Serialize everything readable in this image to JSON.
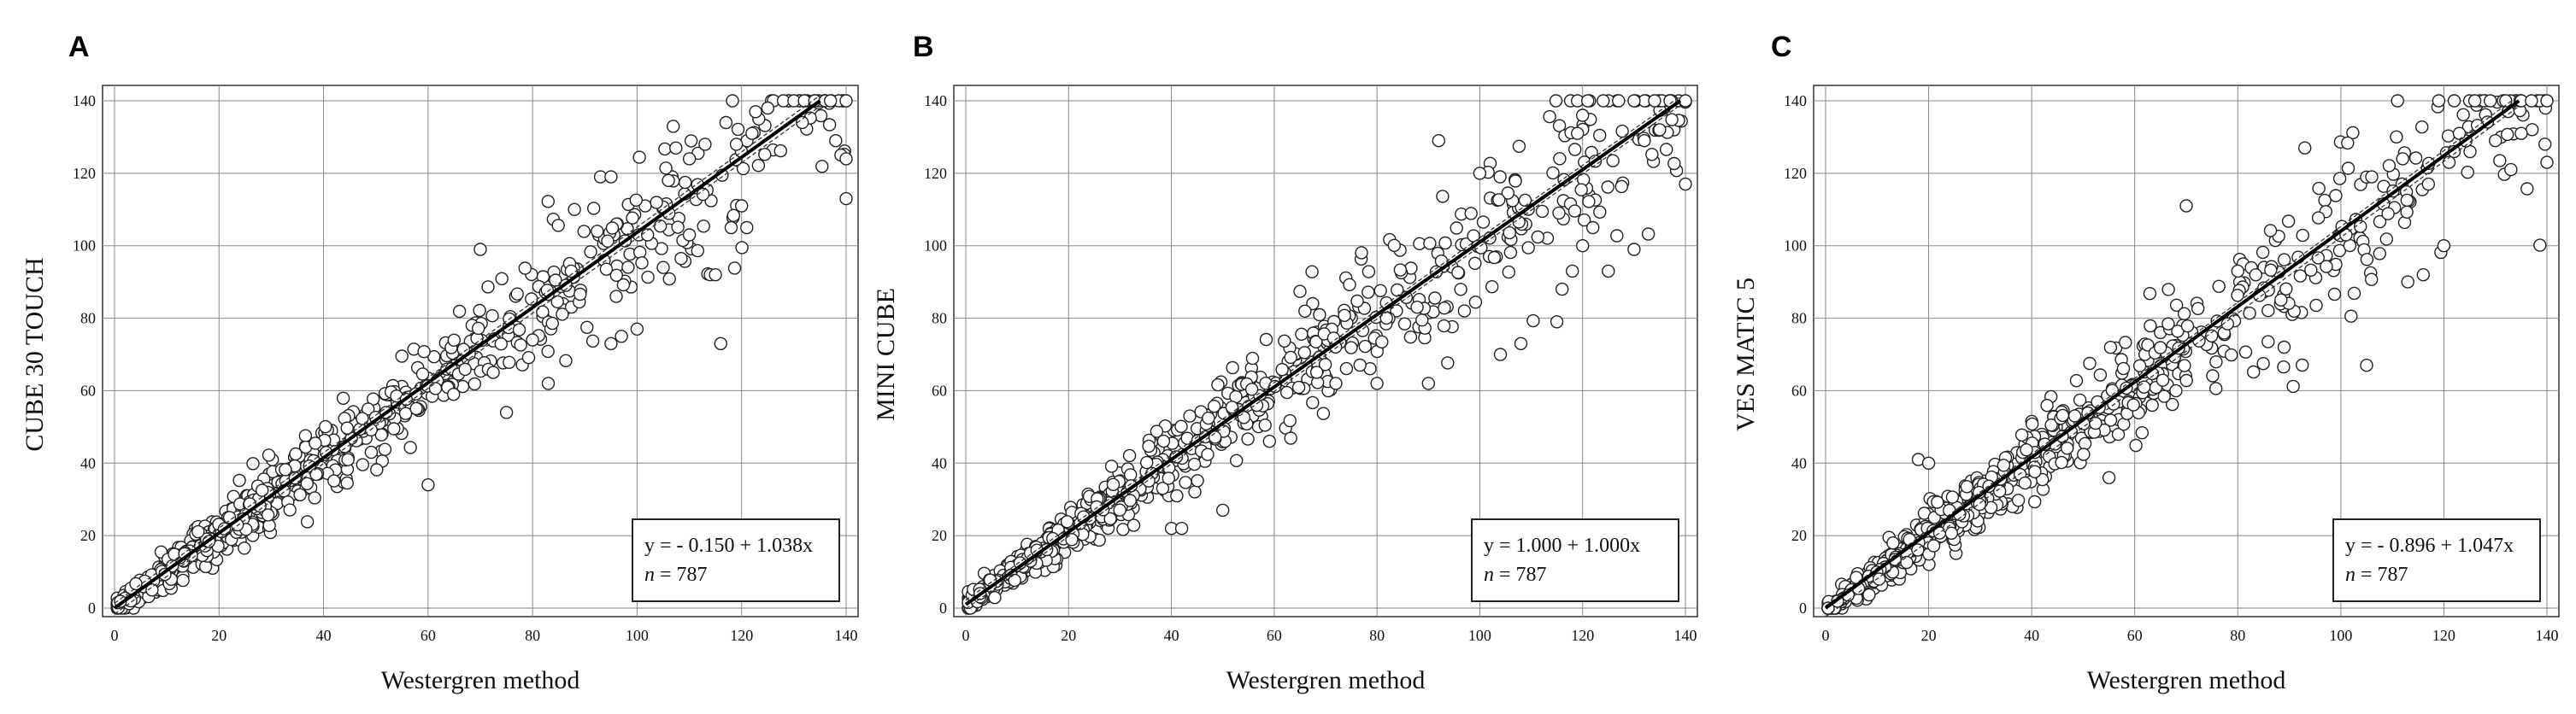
{
  "chart_data": [
    {
      "type": "scatter",
      "panel": "A",
      "xlabel": "Westergren method",
      "ylabel": "CUBE 30 TOUCH",
      "xlim": [
        0,
        140
      ],
      "ylim": [
        0,
        140
      ],
      "x_ticks": [
        0,
        20,
        40,
        60,
        80,
        100,
        120,
        140
      ],
      "y_ticks": [
        0,
        20,
        40,
        60,
        80,
        100,
        120,
        140
      ],
      "grid": true,
      "regression": {
        "intercept": -0.15,
        "slope": 1.038,
        "ci_band": 1.5
      },
      "equation_prefix": "y = - 0.150 + 1.038x",
      "n_label": "n",
      "n_value": "= 787",
      "legend_position": "bottom-right",
      "seed": 11,
      "scatter_sd": 5.5,
      "points": [
        [
          60,
          34
        ],
        [
          70,
          99
        ],
        [
          75,
          54
        ],
        [
          80,
          74
        ],
        [
          83,
          62
        ],
        [
          95,
          73
        ],
        [
          97,
          75
        ],
        [
          96,
          86
        ],
        [
          100,
          77
        ],
        [
          102,
          103
        ],
        [
          105,
          94
        ],
        [
          110,
          103
        ],
        [
          114,
          92
        ],
        [
          115,
          92
        ],
        [
          116,
          73
        ],
        [
          118,
          105
        ],
        [
          120,
          111
        ],
        [
          121,
          105
        ],
        [
          119,
          128
        ],
        [
          122,
          131
        ],
        [
          125,
          138
        ],
        [
          128,
          140
        ],
        [
          130,
          140
        ],
        [
          132,
          140
        ],
        [
          134,
          140
        ],
        [
          136,
          140
        ],
        [
          137,
          140
        ],
        [
          138,
          129
        ],
        [
          139,
          125
        ],
        [
          140,
          124
        ],
        [
          140,
          113
        ],
        [
          140,
          140
        ],
        [
          113,
          128
        ],
        [
          117,
          134
        ],
        [
          110,
          124
        ],
        [
          106,
          118
        ],
        [
          93,
          119
        ],
        [
          95,
          119
        ],
        [
          88,
          110
        ]
      ]
    },
    {
      "type": "scatter",
      "panel": "B",
      "xlabel": "Westergren method",
      "ylabel": "MINI CUBE",
      "xlim": [
        0,
        140
      ],
      "ylim": [
        0,
        140
      ],
      "x_ticks": [
        0,
        20,
        40,
        60,
        80,
        100,
        120,
        140
      ],
      "y_ticks": [
        0,
        20,
        40,
        60,
        80,
        100,
        120,
        140
      ],
      "grid": true,
      "regression": {
        "intercept": 1.0,
        "slope": 1.0,
        "ci_band": 1.2
      },
      "equation_prefix": "y = 1.000 + 1.000x",
      "n_label": "n",
      "n_value": "= 787",
      "legend_position": "bottom-right",
      "seed": 23,
      "scatter_sd": 5.5,
      "points": [
        [
          40,
          22
        ],
        [
          42,
          22
        ],
        [
          50,
          27
        ],
        [
          72,
          62
        ],
        [
          80,
          62
        ],
        [
          90,
          62
        ],
        [
          92,
          129
        ],
        [
          100,
          120
        ],
        [
          97,
          82
        ],
        [
          104,
          70
        ],
        [
          108,
          73
        ],
        [
          115,
          79
        ],
        [
          116,
          88
        ],
        [
          118,
          93
        ],
        [
          120,
          100
        ],
        [
          122,
          105
        ],
        [
          125,
          93
        ],
        [
          130,
          99
        ],
        [
          132,
          129
        ],
        [
          135,
          132
        ],
        [
          140,
          117
        ],
        [
          119,
          140
        ],
        [
          121,
          140
        ],
        [
          124,
          140
        ],
        [
          127,
          140
        ],
        [
          130,
          140
        ],
        [
          134,
          140
        ],
        [
          137,
          140
        ],
        [
          140,
          140
        ],
        [
          120,
          136
        ],
        [
          119,
          131
        ]
      ]
    },
    {
      "type": "scatter",
      "panel": "C",
      "xlabel": "Westergren method",
      "ylabel": "VES MATIC 5",
      "xlim": [
        0,
        140
      ],
      "ylim": [
        0,
        140
      ],
      "x_ticks": [
        0,
        20,
        40,
        60,
        80,
        100,
        120,
        140
      ],
      "y_ticks": [
        0,
        20,
        40,
        60,
        80,
        100,
        120,
        140
      ],
      "grid": true,
      "regression": {
        "intercept": -0.896,
        "slope": 1.047,
        "ci_band": 1.5
      },
      "equation_prefix": "y = - 0.896 + 1.047x",
      "n_label": "n",
      "n_value": "= 787",
      "legend_position": "bottom-right",
      "seed": 37,
      "scatter_sd": 6,
      "points": [
        [
          18,
          41
        ],
        [
          20,
          40
        ],
        [
          55,
          36
        ],
        [
          70,
          111
        ],
        [
          80,
          93
        ],
        [
          93,
          127
        ],
        [
          105,
          67
        ],
        [
          113,
          90
        ],
        [
          116,
          92
        ],
        [
          117,
          117
        ],
        [
          120,
          100
        ],
        [
          121,
          123
        ],
        [
          122,
          126
        ],
        [
          123,
          131
        ],
        [
          125,
          140
        ],
        [
          130,
          129
        ],
        [
          133,
          121
        ],
        [
          135,
          131
        ],
        [
          140,
          123
        ],
        [
          111,
          140
        ],
        [
          119,
          140
        ],
        [
          122,
          140
        ],
        [
          126,
          140
        ],
        [
          129,
          140
        ],
        [
          132,
          140
        ],
        [
          135,
          140
        ],
        [
          137,
          140
        ],
        [
          140,
          140
        ],
        [
          112,
          124
        ],
        [
          106,
          119
        ],
        [
          101,
          103
        ]
      ]
    }
  ]
}
